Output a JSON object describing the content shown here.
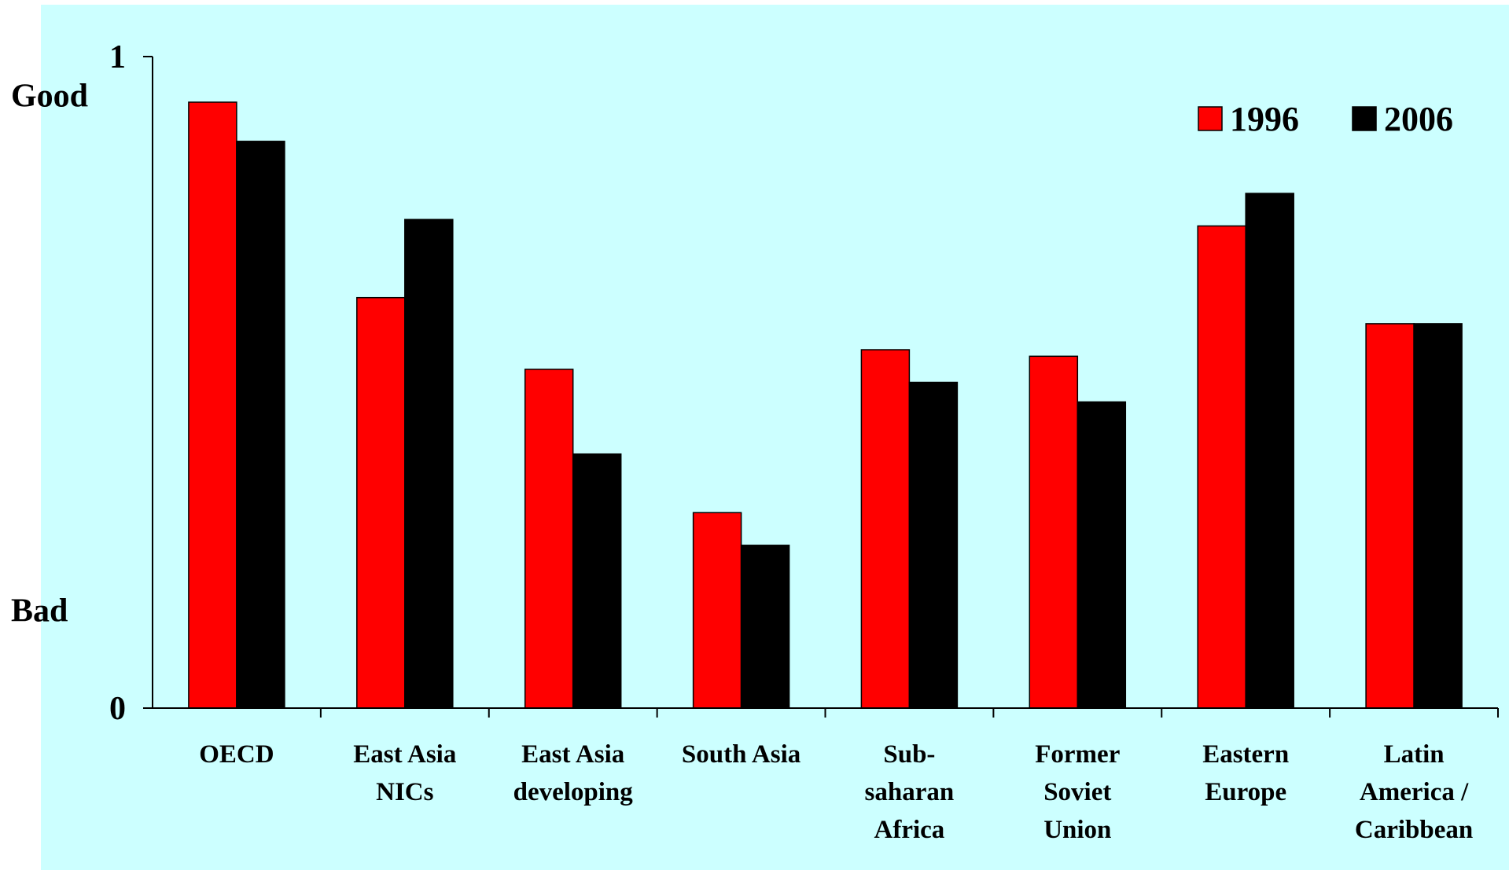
{
  "chart_data": {
    "type": "bar",
    "title": "",
    "xlabel": "",
    "ylabel": "",
    "ylim": [
      0,
      1
    ],
    "yticks": [
      "0",
      "1"
    ],
    "y_annotations": [
      {
        "label": "Good",
        "value": 0.94
      },
      {
        "label": "Bad",
        "value": 0.15
      }
    ],
    "categories": [
      [
        "OECD"
      ],
      [
        "East Asia",
        "NICs"
      ],
      [
        "East Asia",
        "developing"
      ],
      [
        "South Asia"
      ],
      [
        "Sub-",
        "saharan",
        "Africa"
      ],
      [
        "Former",
        "Soviet",
        "Union"
      ],
      [
        "Eastern",
        "Europe"
      ],
      [
        "Latin",
        "America /",
        "Caribbean"
      ]
    ],
    "series": [
      {
        "name": "1996",
        "color": "#ff0000",
        "values": [
          0.93,
          0.63,
          0.52,
          0.3,
          0.55,
          0.54,
          0.74,
          0.59
        ]
      },
      {
        "name": "2006",
        "color": "#000000",
        "values": [
          0.87,
          0.75,
          0.39,
          0.25,
          0.5,
          0.47,
          0.79,
          0.59
        ]
      }
    ],
    "legend": "top-right",
    "grid": false
  }
}
